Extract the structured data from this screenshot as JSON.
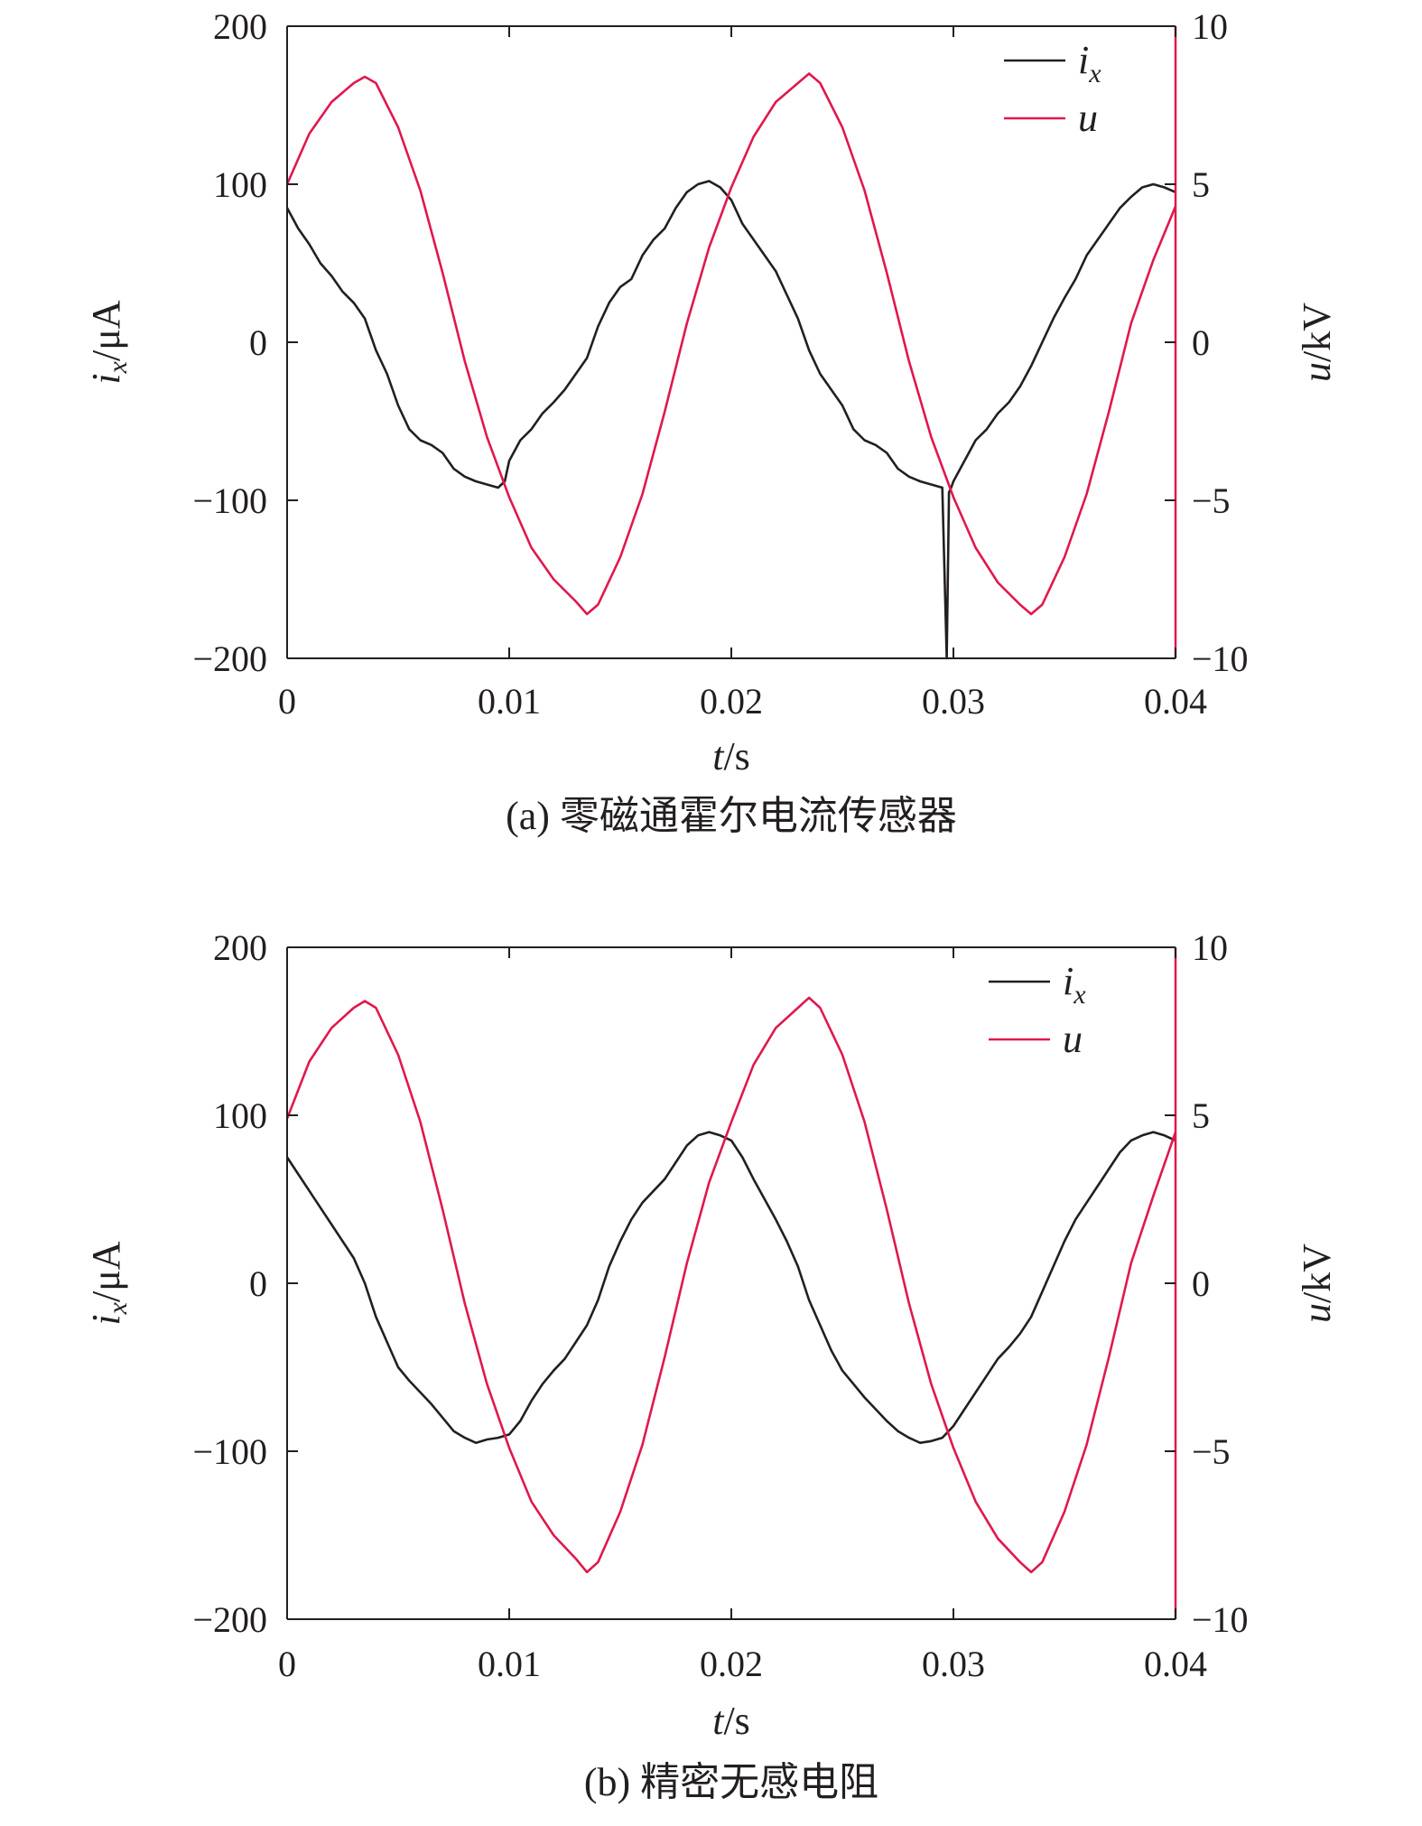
{
  "colors": {
    "ix": "#231f20",
    "u": "#e0184c",
    "axis": "#231f20"
  },
  "chart_data": [
    {
      "type": "line",
      "caption": "(a) 零磁通霍尔电流传感器",
      "xlabel": {
        "var": "t",
        "unit": "/s"
      },
      "ylabel_left": {
        "var": "i",
        "sub": "x",
        "unit": "/μA"
      },
      "ylabel_right": {
        "var": "u",
        "unit": "/kV"
      },
      "xlim": [
        0,
        0.04
      ],
      "ylim_left": [
        -200,
        200
      ],
      "ylim_right": [
        -10,
        10
      ],
      "x_ticks": [
        "0",
        "0.01",
        "0.02",
        "0.03",
        "0.04"
      ],
      "y_left_ticks": [
        "−200",
        "−100",
        "0",
        "100",
        "200"
      ],
      "y_right_ticks": [
        "−10",
        "−5",
        "0",
        "5",
        "10"
      ],
      "legend": {
        "position": "top-right",
        "entries": [
          {
            "var": "i",
            "sub": "x"
          },
          {
            "var": "u",
            "sub": ""
          }
        ]
      },
      "series": [
        {
          "name": "ix",
          "axis": "left",
          "x": [
            0,
            0.0005,
            0.001,
            0.0015,
            0.002,
            0.0025,
            0.003,
            0.0035,
            0.004,
            0.0045,
            0.005,
            0.0055,
            0.006,
            0.0065,
            0.007,
            0.0075,
            0.008,
            0.0085,
            0.009,
            0.0095,
            0.0098,
            0.01,
            0.0105,
            0.011,
            0.0115,
            0.012,
            0.0125,
            0.013,
            0.0135,
            0.014,
            0.0145,
            0.015,
            0.0155,
            0.016,
            0.0165,
            0.017,
            0.0175,
            0.018,
            0.0185,
            0.019,
            0.0195,
            0.02,
            0.0205,
            0.021,
            0.0215,
            0.022,
            0.0225,
            0.023,
            0.0235,
            0.024,
            0.0245,
            0.025,
            0.0255,
            0.026,
            0.0265,
            0.027,
            0.0275,
            0.028,
            0.0285,
            0.029,
            0.0295,
            0.0297,
            0.0298,
            0.0299,
            0.03,
            0.0305,
            0.031,
            0.0315,
            0.032,
            0.0325,
            0.033,
            0.0335,
            0.034,
            0.0345,
            0.035,
            0.0355,
            0.036,
            0.0365,
            0.037,
            0.0375,
            0.038,
            0.0385,
            0.039,
            0.0395,
            0.04
          ],
          "y": [
            85,
            72,
            62,
            50,
            42,
            32,
            25,
            15,
            -5,
            -20,
            -40,
            -55,
            -62,
            -65,
            -70,
            -80,
            -85,
            -88,
            -90,
            -92,
            -88,
            -75,
            -62,
            -55,
            -45,
            -38,
            -30,
            -20,
            -10,
            10,
            25,
            35,
            40,
            55,
            65,
            72,
            85,
            95,
            100,
            102,
            98,
            90,
            75,
            65,
            55,
            45,
            30,
            15,
            -5,
            -20,
            -30,
            -40,
            -55,
            -62,
            -65,
            -70,
            -80,
            -85,
            -88,
            -90,
            -92,
            -200,
            -95,
            -92,
            -88,
            -75,
            -62,
            -55,
            -45,
            -38,
            -28,
            -15,
            0,
            15,
            28,
            40,
            55,
            65,
            75,
            85,
            92,
            98,
            100,
            98,
            95
          ]
        },
        {
          "name": "u",
          "axis": "right",
          "x": [
            0,
            0.001,
            0.002,
            0.003,
            0.0035,
            0.004,
            0.005,
            0.006,
            0.007,
            0.008,
            0.009,
            0.01,
            0.011,
            0.012,
            0.013,
            0.0135,
            0.014,
            0.015,
            0.016,
            0.017,
            0.018,
            0.019,
            0.02,
            0.021,
            0.022,
            0.023,
            0.0235,
            0.024,
            0.025,
            0.026,
            0.027,
            0.028,
            0.029,
            0.03,
            0.031,
            0.032,
            0.033,
            0.0335,
            0.034,
            0.035,
            0.036,
            0.037,
            0.038,
            0.039,
            0.04
          ],
          "y": [
            5.0,
            6.6,
            7.6,
            8.2,
            8.4,
            8.2,
            6.8,
            4.8,
            2.2,
            -0.6,
            -3.0,
            -4.9,
            -6.5,
            -7.5,
            -8.2,
            -8.6,
            -8.3,
            -6.8,
            -4.8,
            -2.2,
            0.6,
            3.0,
            4.9,
            6.5,
            7.6,
            8.2,
            8.5,
            8.2,
            6.8,
            4.8,
            2.2,
            -0.6,
            -3.0,
            -4.9,
            -6.5,
            -7.6,
            -8.3,
            -8.6,
            -8.3,
            -6.8,
            -4.8,
            -2.2,
            0.6,
            2.6,
            4.3
          ]
        }
      ]
    },
    {
      "type": "line",
      "caption": "(b) 精密无感电阻",
      "xlabel": {
        "var": "t",
        "unit": "/s"
      },
      "ylabel_left": {
        "var": "i",
        "sub": "x",
        "unit": "/μA"
      },
      "ylabel_right": {
        "var": "u",
        "unit": "/kV"
      },
      "xlim": [
        0,
        0.04
      ],
      "ylim_left": [
        -200,
        200
      ],
      "ylim_right": [
        -10,
        10
      ],
      "x_ticks": [
        "0",
        "0.01",
        "0.02",
        "0.03",
        "0.04"
      ],
      "y_left_ticks": [
        "−200",
        "−100",
        "0",
        "100",
        "200"
      ],
      "y_right_ticks": [
        "−10",
        "−5",
        "0",
        "5",
        "10"
      ],
      "legend": {
        "position": "top-right",
        "entries": [
          {
            "var": "i",
            "sub": "x"
          },
          {
            "var": "u",
            "sub": ""
          }
        ]
      },
      "series": [
        {
          "name": "ix",
          "axis": "left",
          "x": [
            0,
            0.0005,
            0.001,
            0.0015,
            0.002,
            0.0025,
            0.003,
            0.0035,
            0.004,
            0.0045,
            0.005,
            0.0055,
            0.006,
            0.0065,
            0.007,
            0.0075,
            0.008,
            0.0085,
            0.009,
            0.0095,
            0.01,
            0.0105,
            0.011,
            0.0115,
            0.012,
            0.0125,
            0.013,
            0.0135,
            0.014,
            0.0145,
            0.015,
            0.0155,
            0.016,
            0.0165,
            0.017,
            0.0175,
            0.018,
            0.0185,
            0.019,
            0.0195,
            0.02,
            0.0205,
            0.021,
            0.0215,
            0.022,
            0.0225,
            0.023,
            0.0235,
            0.024,
            0.0245,
            0.025,
            0.0255,
            0.026,
            0.0265,
            0.027,
            0.0275,
            0.028,
            0.0285,
            0.029,
            0.0295,
            0.03,
            0.0305,
            0.031,
            0.0315,
            0.032,
            0.0325,
            0.033,
            0.0335,
            0.034,
            0.0345,
            0.035,
            0.0355,
            0.036,
            0.0365,
            0.037,
            0.0375,
            0.038,
            0.0385,
            0.039,
            0.0395,
            0.04
          ],
          "y": [
            75,
            65,
            55,
            45,
            35,
            25,
            15,
            0,
            -20,
            -35,
            -50,
            -58,
            -65,
            -72,
            -80,
            -88,
            -92,
            -95,
            -93,
            -92,
            -90,
            -82,
            -70,
            -60,
            -52,
            -45,
            -35,
            -25,
            -10,
            10,
            25,
            38,
            48,
            55,
            62,
            72,
            82,
            88,
            90,
            88,
            85,
            75,
            62,
            50,
            38,
            25,
            10,
            -10,
            -25,
            -40,
            -52,
            -60,
            -68,
            -75,
            -82,
            -88,
            -92,
            -95,
            -94,
            -92,
            -85,
            -75,
            -65,
            -55,
            -45,
            -38,
            -30,
            -20,
            -5,
            10,
            25,
            38,
            48,
            58,
            68,
            78,
            85,
            88,
            90,
            88,
            85
          ]
        },
        {
          "name": "u",
          "axis": "right",
          "x": [
            0,
            0.001,
            0.002,
            0.003,
            0.0035,
            0.004,
            0.005,
            0.006,
            0.007,
            0.008,
            0.009,
            0.01,
            0.011,
            0.012,
            0.013,
            0.0135,
            0.014,
            0.015,
            0.016,
            0.017,
            0.018,
            0.019,
            0.02,
            0.021,
            0.022,
            0.023,
            0.0235,
            0.024,
            0.025,
            0.026,
            0.027,
            0.028,
            0.029,
            0.03,
            0.031,
            0.032,
            0.033,
            0.0335,
            0.034,
            0.035,
            0.036,
            0.037,
            0.038,
            0.039,
            0.04
          ],
          "y": [
            4.9,
            6.6,
            7.6,
            8.2,
            8.4,
            8.2,
            6.8,
            4.8,
            2.2,
            -0.6,
            -3.0,
            -4.9,
            -6.5,
            -7.5,
            -8.2,
            -8.6,
            -8.3,
            -6.8,
            -4.8,
            -2.2,
            0.6,
            3.0,
            4.8,
            6.5,
            7.6,
            8.2,
            8.5,
            8.2,
            6.8,
            4.8,
            2.2,
            -0.6,
            -3.0,
            -4.9,
            -6.5,
            -7.6,
            -8.3,
            -8.6,
            -8.3,
            -6.8,
            -4.8,
            -2.2,
            0.6,
            2.6,
            4.5
          ]
        }
      ]
    }
  ]
}
